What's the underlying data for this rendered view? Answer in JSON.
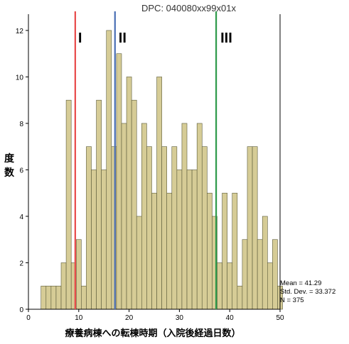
{
  "chart_data": {
    "type": "bar",
    "title": "DPC: 040080xx99x01x",
    "xlabel": "療養病棟への転棟時期（入院後経過日数）",
    "ylabel": "度数",
    "x_ticks": [
      0,
      10,
      20,
      30,
      40,
      50
    ],
    "y_ticks": [
      0,
      2,
      4,
      6,
      8,
      10,
      12
    ],
    "xlim": [
      0,
      50
    ],
    "ylim": [
      0,
      12.7
    ],
    "bin_width": 1,
    "bar_color": "#d6cc96",
    "bar_edge_color": "#5a5a3a",
    "bins": [
      {
        "x": 3,
        "y": 1
      },
      {
        "x": 4,
        "y": 1
      },
      {
        "x": 5,
        "y": 1
      },
      {
        "x": 6,
        "y": 1
      },
      {
        "x": 7,
        "y": 2
      },
      {
        "x": 8,
        "y": 9
      },
      {
        "x": 9,
        "y": 2
      },
      {
        "x": 10,
        "y": 3
      },
      {
        "x": 11,
        "y": 1
      },
      {
        "x": 12,
        "y": 7
      },
      {
        "x": 13,
        "y": 6
      },
      {
        "x": 14,
        "y": 9
      },
      {
        "x": 15,
        "y": 6
      },
      {
        "x": 16,
        "y": 12
      },
      {
        "x": 17,
        "y": 7
      },
      {
        "x": 18,
        "y": 11
      },
      {
        "x": 19,
        "y": 8
      },
      {
        "x": 20,
        "y": 10
      },
      {
        "x": 21,
        "y": 9
      },
      {
        "x": 22,
        "y": 4
      },
      {
        "x": 23,
        "y": 8
      },
      {
        "x": 24,
        "y": 7
      },
      {
        "x": 25,
        "y": 5
      },
      {
        "x": 26,
        "y": 10
      },
      {
        "x": 27,
        "y": 7
      },
      {
        "x": 28,
        "y": 5
      },
      {
        "x": 29,
        "y": 7
      },
      {
        "x": 30,
        "y": 6
      },
      {
        "x": 31,
        "y": 8
      },
      {
        "x": 32,
        "y": 6
      },
      {
        "x": 33,
        "y": 6
      },
      {
        "x": 34,
        "y": 8
      },
      {
        "x": 35,
        "y": 7
      },
      {
        "x": 36,
        "y": 5
      },
      {
        "x": 37,
        "y": 4
      },
      {
        "x": 38,
        "y": 2
      },
      {
        "x": 39,
        "y": 5
      },
      {
        "x": 40,
        "y": 2
      },
      {
        "x": 41,
        "y": 5
      },
      {
        "x": 42,
        "y": 1
      },
      {
        "x": 43,
        "y": 3
      },
      {
        "x": 44,
        "y": 7
      },
      {
        "x": 45,
        "y": 7
      },
      {
        "x": 46,
        "y": 3
      },
      {
        "x": 47,
        "y": 4
      },
      {
        "x": 48,
        "y": 2
      },
      {
        "x": 49,
        "y": 3
      },
      {
        "x": 50,
        "y": 1
      }
    ],
    "markers": [
      {
        "label": "I",
        "x": 9.3,
        "color": "#e84a4a"
      },
      {
        "label": "II",
        "x": 17.2,
        "color": "#4a6fb5"
      },
      {
        "label": "III",
        "x": 37.3,
        "color": "#2e9a4a"
      }
    ],
    "stats": {
      "mean": "Mean = 41.29",
      "std": "Std. Dev. = 33.372",
      "n": "N = 375"
    }
  }
}
